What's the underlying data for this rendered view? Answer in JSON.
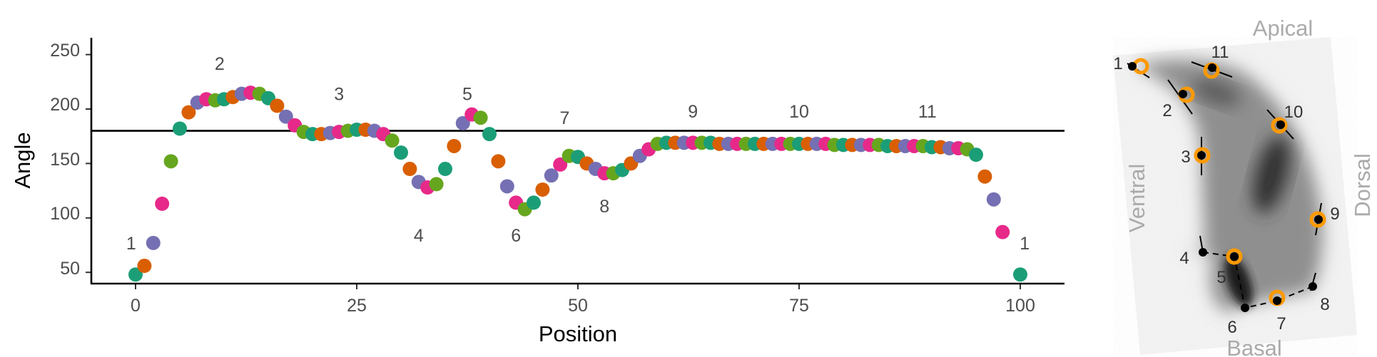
{
  "chart_data": {
    "type": "scatter",
    "xlabel": "Position",
    "ylabel": "Angle",
    "xlim": [
      -5,
      105
    ],
    "ylim": [
      33,
      262
    ],
    "x_ticks": [
      0,
      25,
      50,
      75,
      100
    ],
    "y_ticks": [
      50,
      100,
      150,
      200,
      250
    ],
    "reference_line": 180,
    "palette": [
      "#1b9e77",
      "#d95f02",
      "#7570b3",
      "#e7298a",
      "#66a61e"
    ],
    "x": [
      0,
      1,
      2,
      3,
      4,
      5,
      6,
      7,
      8,
      9,
      10,
      11,
      12,
      13,
      14,
      15,
      16,
      17,
      18,
      19,
      20,
      21,
      22,
      23,
      24,
      25,
      26,
      27,
      28,
      29,
      30,
      31,
      32,
      33,
      34,
      35,
      36,
      37,
      38,
      39,
      40,
      41,
      42,
      43,
      44,
      45,
      46,
      47,
      48,
      49,
      50,
      51,
      52,
      53,
      54,
      55,
      56,
      57,
      58,
      59,
      60,
      61,
      62,
      63,
      64,
      65,
      66,
      67,
      68,
      69,
      70,
      71,
      72,
      73,
      74,
      75,
      76,
      77,
      78,
      79,
      80,
      81,
      82,
      83,
      84,
      85,
      86,
      87,
      88,
      89,
      90,
      91,
      92,
      93,
      94,
      95,
      96,
      97,
      98,
      99,
      100
    ],
    "y": [
      48,
      56,
      77,
      113,
      152,
      182,
      197,
      206,
      209,
      208,
      209,
      211,
      214,
      215,
      214,
      210,
      203,
      193,
      185,
      179,
      177,
      177,
      178,
      179,
      180,
      181,
      181,
      180,
      177,
      171,
      160,
      145,
      133,
      128,
      131,
      145,
      166,
      187,
      195,
      192,
      177,
      152,
      129,
      114,
      108,
      114,
      126,
      139,
      149,
      157,
      156,
      150,
      145,
      141,
      141,
      144,
      150,
      157,
      163,
      168,
      169,
      169,
      169,
      169,
      169,
      169,
      168,
      168,
      168,
      168,
      168,
      168,
      168,
      168,
      168,
      168,
      168,
      168,
      168,
      167,
      167,
      167,
      167,
      167,
      167,
      166,
      166,
      166,
      166,
      166,
      165,
      165,
      164,
      164,
      163,
      158,
      138,
      117,
      87,
      null,
      48
    ],
    "annotations": [
      {
        "text": "1",
        "x": -0.5,
        "y": 77
      },
      {
        "text": "2",
        "x": 9.5,
        "y": 242
      },
      {
        "text": "3",
        "x": 23,
        "y": 214
      },
      {
        "text": "4",
        "x": 32,
        "y": 84
      },
      {
        "text": "5",
        "x": 37.5,
        "y": 214
      },
      {
        "text": "6",
        "x": 43,
        "y": 84
      },
      {
        "text": "7",
        "x": 48.5,
        "y": 192
      },
      {
        "text": "8",
        "x": 53,
        "y": 111
      },
      {
        "text": "9",
        "x": 63,
        "y": 198
      },
      {
        "text": "10",
        "x": 75,
        "y": 198
      },
      {
        "text": "11",
        "x": 89.5,
        "y": 198
      },
      {
        "text": "1",
        "x": 100.5,
        "y": 77
      }
    ]
  },
  "inset": {
    "labels": {
      "apical": "Apical",
      "basal": "Basal",
      "ventral": "Ventral",
      "dorsal": "Dorsal"
    },
    "landmark_numbers": [
      "1",
      "2",
      "3",
      "4",
      "5",
      "6",
      "7",
      "8",
      "9",
      "10",
      "11"
    ],
    "marker_color": "#ff9900"
  }
}
